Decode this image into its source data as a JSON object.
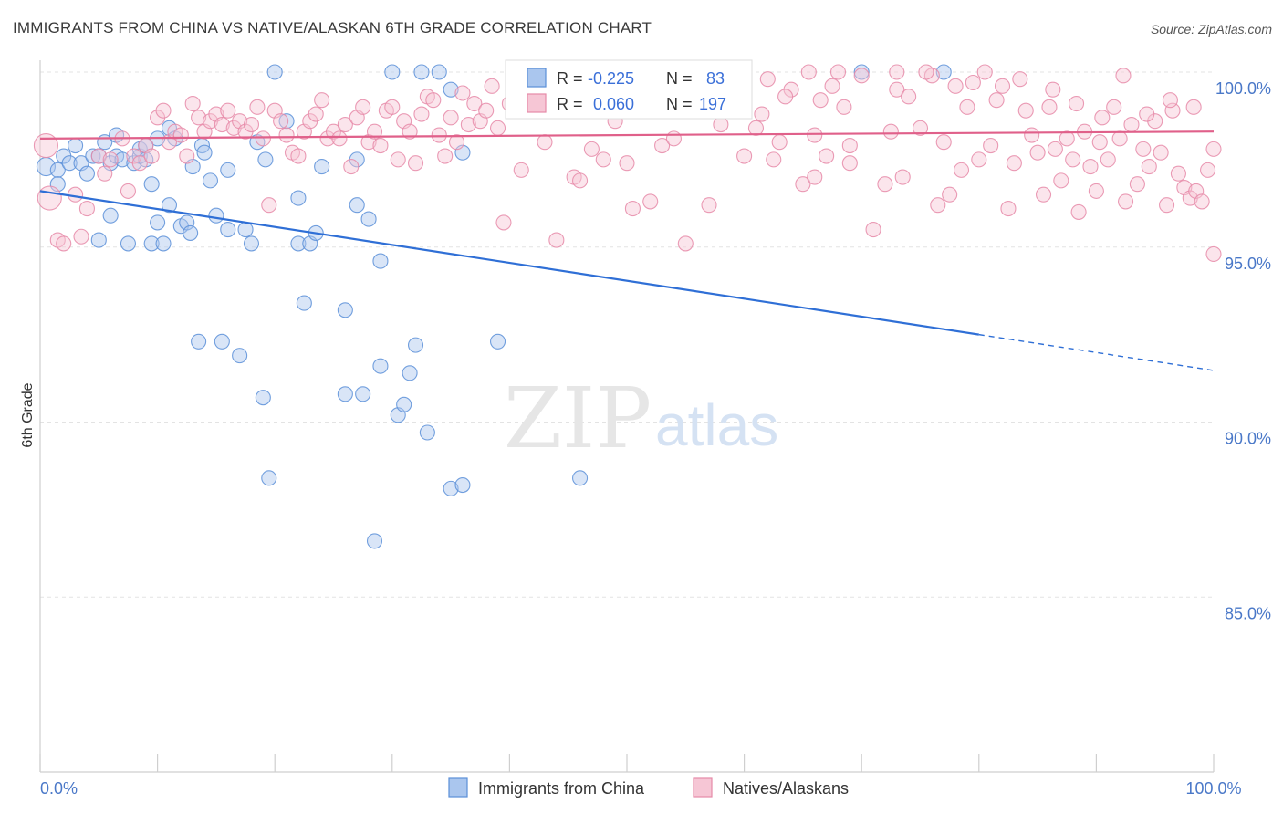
{
  "header": {
    "title": "IMMIGRANTS FROM CHINA VS NATIVE/ALASKAN 6TH GRADE CORRELATION CHART",
    "source": "Source: ZipAtlas.com"
  },
  "watermark": {
    "zip": "ZIP",
    "atlas": "atlas"
  },
  "chart_data": {
    "type": "scatter",
    "title": "IMMIGRANTS FROM CHINA VS NATIVE/ALASKAN 6TH GRADE CORRELATION CHART",
    "xlabel": "",
    "ylabel": "6th Grade",
    "xlim": [
      0,
      100
    ],
    "ylim": [
      80,
      100.8
    ],
    "x_tick_labels": {
      "left": "0.0%",
      "right": "100.0%"
    },
    "y_ticks": [
      {
        "value": 100,
        "label": "100.0%"
      },
      {
        "value": 95,
        "label": "95.0%"
      },
      {
        "value": 90,
        "label": "90.0%"
      },
      {
        "value": 85,
        "label": "85.0%"
      }
    ],
    "grid": true,
    "legend_position": "bottom-center",
    "stats_box": {
      "rows": [
        {
          "r_label": "R =",
          "r_value": "-0.225",
          "n_label": "N =",
          "n_value": "83"
        },
        {
          "r_label": "R =",
          "r_value": "0.060",
          "n_label": "N =",
          "n_value": "197"
        }
      ]
    },
    "series": [
      {
        "name": "Immigrants from China",
        "color": "#5b8fd8",
        "fill": "#aac6ee",
        "trend": {
          "x0": 0,
          "y0": 96.6,
          "x1": 80,
          "y1": 92.5,
          "dash_to": 100
        },
        "points": [
          [
            0.5,
            97.3
          ],
          [
            1.5,
            97.2
          ],
          [
            1.5,
            96.8
          ],
          [
            2,
            97.6
          ],
          [
            2.5,
            97.4
          ],
          [
            3,
            97.9
          ],
          [
            3.5,
            97.4
          ],
          [
            4,
            97.1
          ],
          [
            4.5,
            97.6
          ],
          [
            5,
            97.6
          ],
          [
            5,
            95.2
          ],
          [
            5.5,
            98.0
          ],
          [
            6,
            97.4
          ],
          [
            6.5,
            97.6
          ],
          [
            6,
            95.9
          ],
          [
            6.5,
            98.2
          ],
          [
            7,
            97.5
          ],
          [
            7.5,
            95.1
          ],
          [
            8,
            97.4
          ],
          [
            8.5,
            97.6
          ],
          [
            8.5,
            97.8
          ],
          [
            9,
            97.9
          ],
          [
            9,
            97.5
          ],
          [
            9.5,
            96.8
          ],
          [
            9.5,
            95.1
          ],
          [
            10,
            95.7
          ],
          [
            10,
            98.1
          ],
          [
            10.5,
            95.1
          ],
          [
            11,
            98.4
          ],
          [
            11,
            96.2
          ],
          [
            11.5,
            98.1
          ],
          [
            12,
            95.6
          ],
          [
            12.5,
            95.7
          ],
          [
            12.8,
            95.4
          ],
          [
            13,
            97.3
          ],
          [
            13.5,
            92.3
          ],
          [
            13.8,
            97.9
          ],
          [
            14,
            97.7
          ],
          [
            14.5,
            96.9
          ],
          [
            15,
            95.9
          ],
          [
            15.5,
            92.3
          ],
          [
            16,
            97.2
          ],
          [
            16,
            95.5
          ],
          [
            17,
            91.9
          ],
          [
            17.5,
            95.5
          ],
          [
            18,
            95.1
          ],
          [
            18.5,
            98.0
          ],
          [
            19,
            90.7
          ],
          [
            19.2,
            97.5
          ],
          [
            19.5,
            88.4
          ],
          [
            20,
            100.0
          ],
          [
            21,
            98.6
          ],
          [
            22,
            96.4
          ],
          [
            22,
            95.1
          ],
          [
            22.5,
            93.4
          ],
          [
            23,
            95.1
          ],
          [
            23.5,
            95.4
          ],
          [
            24,
            97.3
          ],
          [
            26,
            93.2
          ],
          [
            26,
            90.8
          ],
          [
            27,
            97.5
          ],
          [
            27,
            96.2
          ],
          [
            27.5,
            90.8
          ],
          [
            28,
            95.8
          ],
          [
            28.5,
            86.6
          ],
          [
            29,
            94.6
          ],
          [
            29,
            91.6
          ],
          [
            30,
            100.0
          ],
          [
            30.5,
            90.2
          ],
          [
            31,
            90.5
          ],
          [
            31.5,
            91.4
          ],
          [
            32,
            92.2
          ],
          [
            32.5,
            100.0
          ],
          [
            33,
            89.7
          ],
          [
            34,
            100.0
          ],
          [
            35,
            99.5
          ],
          [
            35,
            88.1
          ],
          [
            36,
            97.7
          ],
          [
            36,
            88.2
          ],
          [
            39,
            92.3
          ],
          [
            46,
            88.4
          ],
          [
            70,
            100.0
          ],
          [
            77,
            100.0
          ]
        ]
      },
      {
        "name": "Natives/Alaskans",
        "color": "#e68aa8",
        "fill": "#f6c6d5",
        "trend": {
          "x0": 0,
          "y0": 98.1,
          "x1": 100,
          "y1": 98.3
        },
        "points": [
          [
            0.5,
            97.9
          ],
          [
            0.8,
            96.4
          ],
          [
            1.5,
            95.2
          ],
          [
            2,
            95.1
          ],
          [
            3,
            96.5
          ],
          [
            3.5,
            95.3
          ],
          [
            4,
            96.1
          ],
          [
            5,
            97.6
          ],
          [
            5.5,
            97.1
          ],
          [
            6,
            97.5
          ],
          [
            7,
            98.1
          ],
          [
            7.5,
            96.6
          ],
          [
            8,
            97.6
          ],
          [
            8.5,
            97.4
          ],
          [
            9,
            97.9
          ],
          [
            9.5,
            97.6
          ],
          [
            10,
            98.7
          ],
          [
            10.5,
            98.9
          ],
          [
            11,
            98.0
          ],
          [
            11.5,
            98.3
          ],
          [
            12,
            98.2
          ],
          [
            12.5,
            97.6
          ],
          [
            13,
            99.1
          ],
          [
            13.5,
            98.7
          ],
          [
            14,
            98.3
          ],
          [
            14.5,
            98.6
          ],
          [
            15,
            98.8
          ],
          [
            15.5,
            98.5
          ],
          [
            16,
            98.9
          ],
          [
            16.5,
            98.4
          ],
          [
            17,
            98.6
          ],
          [
            17.5,
            98.3
          ],
          [
            18,
            98.5
          ],
          [
            18.5,
            99.0
          ],
          [
            19,
            98.1
          ],
          [
            19.5,
            96.2
          ],
          [
            20,
            98.9
          ],
          [
            20.5,
            98.6
          ],
          [
            21,
            98.2
          ],
          [
            21.5,
            97.7
          ],
          [
            22,
            97.6
          ],
          [
            22.5,
            98.3
          ],
          [
            23,
            98.6
          ],
          [
            23.5,
            98.8
          ],
          [
            24,
            99.2
          ],
          [
            24.5,
            98.1
          ],
          [
            25,
            98.3
          ],
          [
            25.5,
            98.1
          ],
          [
            26,
            98.5
          ],
          [
            26.5,
            97.3
          ],
          [
            27,
            98.7
          ],
          [
            27.5,
            99.0
          ],
          [
            28,
            98.0
          ],
          [
            28.5,
            98.3
          ],
          [
            29,
            97.9
          ],
          [
            29.5,
            98.9
          ],
          [
            30,
            99.0
          ],
          [
            30.5,
            97.5
          ],
          [
            31,
            98.6
          ],
          [
            31.5,
            98.3
          ],
          [
            32,
            97.4
          ],
          [
            32.5,
            98.8
          ],
          [
            33,
            99.3
          ],
          [
            33.5,
            99.2
          ],
          [
            34,
            98.2
          ],
          [
            34.5,
            97.6
          ],
          [
            35,
            98.7
          ],
          [
            35.5,
            98.0
          ],
          [
            36,
            99.4
          ],
          [
            36.5,
            98.5
          ],
          [
            37,
            99.1
          ],
          [
            37.5,
            98.6
          ],
          [
            38,
            98.9
          ],
          [
            38.5,
            99.6
          ],
          [
            39,
            98.4
          ],
          [
            39.5,
            95.7
          ],
          [
            40,
            99.1
          ],
          [
            40.5,
            99.4
          ],
          [
            41,
            97.2
          ],
          [
            42,
            99.2
          ],
          [
            43,
            98.0
          ],
          [
            44,
            95.2
          ],
          [
            45,
            99.6
          ],
          [
            45.5,
            97.0
          ],
          [
            46,
            96.9
          ],
          [
            47,
            97.8
          ],
          [
            48,
            97.5
          ],
          [
            49,
            98.6
          ],
          [
            50,
            97.4
          ],
          [
            50.5,
            96.1
          ],
          [
            51,
            99.8
          ],
          [
            52,
            96.3
          ],
          [
            53,
            97.9
          ],
          [
            54,
            98.1
          ],
          [
            55,
            95.1
          ],
          [
            56,
            99.4
          ],
          [
            57,
            96.2
          ],
          [
            58,
            98.5
          ],
          [
            59,
            99.1
          ],
          [
            60,
            97.6
          ],
          [
            61,
            98.4
          ],
          [
            62,
            99.8
          ],
          [
            62.5,
            97.5
          ],
          [
            63,
            98.0
          ],
          [
            64,
            99.5
          ],
          [
            65,
            96.8
          ],
          [
            66,
            98.2
          ],
          [
            66.5,
            99.2
          ],
          [
            67,
            97.6
          ],
          [
            68,
            100.0
          ],
          [
            68.5,
            99.0
          ],
          [
            69,
            97.4
          ],
          [
            70,
            99.9
          ],
          [
            71,
            95.5
          ],
          [
            72,
            96.8
          ],
          [
            72.5,
            98.3
          ],
          [
            73,
            99.5
          ],
          [
            73.5,
            97.0
          ],
          [
            74,
            99.3
          ],
          [
            75,
            98.4
          ],
          [
            76,
            99.9
          ],
          [
            76.5,
            96.2
          ],
          [
            77,
            98.0
          ],
          [
            78,
            99.6
          ],
          [
            78.5,
            97.2
          ],
          [
            79,
            99.0
          ],
          [
            80,
            97.5
          ],
          [
            80.5,
            100.0
          ],
          [
            81,
            97.9
          ],
          [
            82,
            99.6
          ],
          [
            82.5,
            96.1
          ],
          [
            83,
            97.4
          ],
          [
            84,
            98.9
          ],
          [
            84.5,
            98.2
          ],
          [
            85,
            97.7
          ],
          [
            85.5,
            96.5
          ],
          [
            86,
            99.0
          ],
          [
            86.5,
            97.8
          ],
          [
            87,
            96.9
          ],
          [
            87.5,
            98.1
          ],
          [
            88,
            97.5
          ],
          [
            88.5,
            96.0
          ],
          [
            89,
            98.3
          ],
          [
            89.5,
            97.3
          ],
          [
            90,
            96.6
          ],
          [
            90.5,
            98.7
          ],
          [
            91,
            97.5
          ],
          [
            91.5,
            99.0
          ],
          [
            92,
            98.1
          ],
          [
            92.5,
            96.3
          ],
          [
            93,
            98.5
          ],
          [
            93.5,
            96.8
          ],
          [
            94,
            97.8
          ],
          [
            94.5,
            97.3
          ],
          [
            95,
            98.6
          ],
          [
            95.5,
            97.7
          ],
          [
            96,
            96.2
          ],
          [
            96.5,
            98.9
          ],
          [
            97,
            97.1
          ],
          [
            97.5,
            96.7
          ],
          [
            98,
            96.4
          ],
          [
            98.5,
            96.6
          ],
          [
            99,
            96.3
          ],
          [
            99.5,
            97.2
          ],
          [
            100,
            97.8
          ],
          [
            100,
            94.8
          ],
          [
            66,
            97.0
          ],
          [
            69,
            97.9
          ],
          [
            73,
            100.0
          ],
          [
            75.5,
            100.0
          ],
          [
            77.5,
            96.5
          ],
          [
            79.5,
            99.7
          ],
          [
            81.5,
            99.2
          ],
          [
            83.5,
            99.8
          ],
          [
            86.3,
            99.5
          ],
          [
            88.3,
            99.1
          ],
          [
            90.3,
            98.0
          ],
          [
            92.3,
            99.9
          ],
          [
            94.3,
            98.8
          ],
          [
            96.3,
            99.2
          ],
          [
            98.3,
            99.0
          ],
          [
            57.5,
            99.2
          ],
          [
            59.5,
            99.7
          ],
          [
            61.5,
            98.8
          ],
          [
            63.5,
            99.3
          ],
          [
            65.5,
            100.0
          ],
          [
            67.5,
            99.6
          ]
        ]
      }
    ]
  },
  "legend": {
    "items": [
      {
        "label": "Immigrants from China",
        "color": "#5b8fd8",
        "fill": "#aac6ee"
      },
      {
        "label": "Natives/Alaskans",
        "color": "#e68aa8",
        "fill": "#f6c6d5"
      }
    ]
  }
}
